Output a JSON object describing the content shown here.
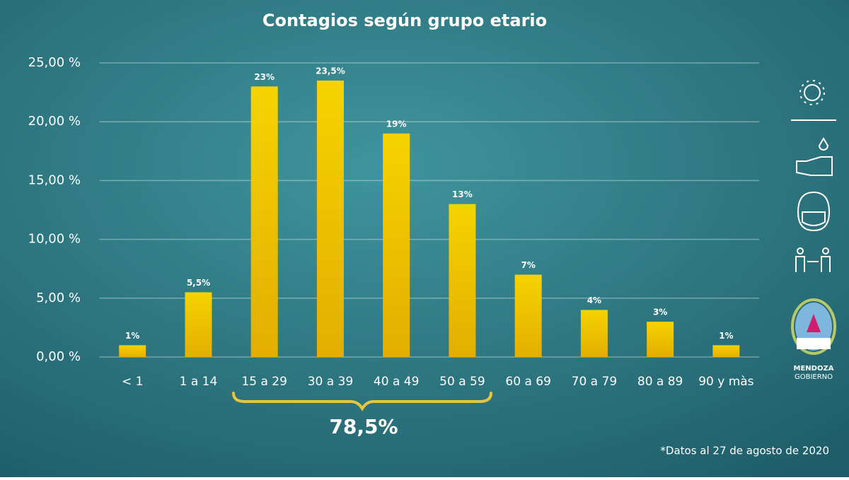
{
  "chart_data": {
    "type": "bar",
    "title": "Contagios según grupo etario",
    "categories": [
      "< 1",
      "1 a 14",
      "15 a 29",
      "30 a 39",
      "40 a 49",
      "50 a 59",
      "60 a 69",
      "70 a 79",
      "80 a 89",
      "90 y màs"
    ],
    "values": [
      1,
      5.5,
      23,
      23.5,
      19,
      13,
      7,
      4,
      3,
      1
    ],
    "value_labels": [
      "1%",
      "5,5%",
      "23%",
      "23,5%",
      "19%",
      "13%",
      "7%",
      "4%",
      "3%",
      "1%"
    ],
    "color": "#f0c800",
    "ylim": [
      0,
      25
    ],
    "yticks": [
      {
        "value": 0,
        "label": "0,00 %"
      },
      {
        "value": 5,
        "label": "5,00 %"
      },
      {
        "value": 10,
        "label": "10,00 %"
      },
      {
        "value": 15,
        "label": "15,00 %"
      },
      {
        "value": 20,
        "label": "20,00 %"
      },
      {
        "value": 25,
        "label": "25,00 %"
      }
    ],
    "grid": true,
    "annotation": "78,5%",
    "footnote": "*Datos al 27 de agosto de 2020"
  },
  "branding": {
    "line1": "MENDOZA",
    "line2": "GOBIERNO"
  }
}
